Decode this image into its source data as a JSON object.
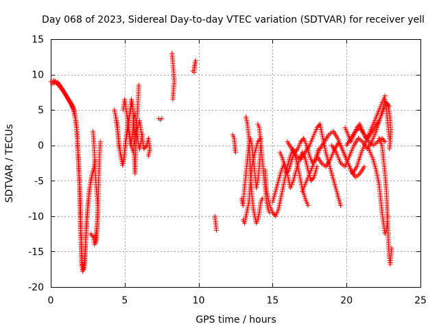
{
  "chart_data": {
    "type": "scatter",
    "title": "Day 068 of 2023, Sidereal Day-to-day VTEC variation (SDTVAR) for receiver yell",
    "xlabel": "GPS time / hours",
    "ylabel": "SDTVAR / TECUs",
    "xlim": [
      0,
      25
    ],
    "ylim": [
      -20,
      15
    ],
    "x_ticks": [
      0,
      5,
      10,
      15,
      20,
      25
    ],
    "x_tick_labels": [
      "0",
      "5",
      "10",
      "15",
      "20",
      "25"
    ],
    "y_ticks": [
      -20,
      -15,
      -10,
      -5,
      0,
      5,
      10,
      15
    ],
    "y_tick_labels": [
      "-20",
      "-15",
      "-10",
      "-5",
      "0",
      "5",
      "10",
      "15"
    ],
    "grid": true,
    "marker": "plus",
    "color": "#ff0000",
    "tracks": [
      [
        [
          0.0,
          9.0
        ],
        [
          0.4,
          8.8
        ],
        [
          0.8,
          7.8
        ],
        [
          1.2,
          6.5
        ],
        [
          1.5,
          5.5
        ],
        [
          1.7,
          3.5
        ],
        [
          1.8,
          1.0
        ],
        [
          1.9,
          -3.0
        ],
        [
          2.0,
          -8.0
        ],
        [
          2.05,
          -13.0
        ],
        [
          2.1,
          -17.0
        ],
        [
          2.2,
          -17.5
        ],
        [
          2.3,
          -16.5
        ],
        [
          2.4,
          -12.0
        ],
        [
          2.5,
          -9.0
        ],
        [
          2.6,
          -6.5
        ],
        [
          2.8,
          -4.0
        ],
        [
          3.0,
          -2.5
        ]
      ],
      [
        [
          0.2,
          9.2
        ],
        [
          0.6,
          8.5
        ],
        [
          1.0,
          7.2
        ],
        [
          1.3,
          6.0
        ],
        [
          1.6,
          5.0
        ],
        [
          1.75,
          2.5
        ],
        [
          1.85,
          -1.5
        ],
        [
          1.95,
          -6.0
        ],
        [
          2.0,
          -11.0
        ],
        [
          2.08,
          -15.5
        ],
        [
          2.15,
          -17.8
        ],
        [
          2.25,
          -17.2
        ],
        [
          2.35,
          -14.0
        ],
        [
          2.45,
          -10.0
        ],
        [
          2.55,
          -7.5
        ],
        [
          2.7,
          -5.0
        ],
        [
          2.9,
          -3.5
        ],
        [
          3.0,
          -2.2
        ]
      ],
      [
        [
          0.1,
          8.7
        ],
        [
          0.5,
          8.9
        ],
        [
          0.9,
          7.5
        ],
        [
          1.1,
          6.8
        ],
        [
          1.4,
          5.8
        ],
        [
          1.55,
          4.8
        ],
        [
          1.65,
          4.0
        ],
        [
          1.78,
          2.0
        ],
        [
          1.88,
          -2.5
        ],
        [
          1.98,
          -7.0
        ],
        [
          2.03,
          -12.0
        ],
        [
          2.12,
          -16.8
        ],
        [
          2.28,
          -17.0
        ],
        [
          2.42,
          -11.0
        ]
      ],
      [
        [
          2.7,
          -12.5
        ],
        [
          2.9,
          -13.0
        ],
        [
          2.95,
          -14.0
        ],
        [
          3.0,
          -13.5
        ],
        [
          3.1,
          -12.0
        ],
        [
          3.15,
          -11.0
        ],
        [
          3.2,
          -9.0
        ],
        [
          3.0,
          -4.0
        ],
        [
          2.95,
          -1.0
        ],
        [
          2.9,
          1.0
        ],
        [
          2.85,
          2.0
        ]
      ],
      [
        [
          3.0,
          -12.8
        ],
        [
          3.05,
          -13.8
        ],
        [
          3.1,
          -13.2
        ],
        [
          3.2,
          -8.0
        ],
        [
          3.25,
          -4.0
        ],
        [
          3.3,
          -1.5
        ],
        [
          3.35,
          0.5
        ]
      ],
      [
        [
          4.3,
          5.0
        ],
        [
          4.5,
          3.0
        ],
        [
          4.6,
          0.0
        ],
        [
          4.8,
          -2.0
        ],
        [
          4.9,
          -2.5
        ],
        [
          5.0,
          -1.0
        ],
        [
          5.1,
          1.0
        ],
        [
          5.2,
          3.0
        ],
        [
          5.4,
          5.0
        ],
        [
          5.5,
          6.0
        ],
        [
          5.6,
          4.0
        ],
        [
          5.7,
          1.5
        ],
        [
          5.8,
          3.0
        ],
        [
          5.9,
          6.0
        ],
        [
          5.95,
          8.5
        ]
      ],
      [
        [
          4.4,
          4.0
        ],
        [
          4.55,
          1.5
        ],
        [
          4.7,
          -1.0
        ],
        [
          4.85,
          -2.8
        ],
        [
          4.95,
          -2.0
        ],
        [
          5.05,
          0.5
        ],
        [
          5.2,
          2.0
        ],
        [
          5.35,
          4.5
        ],
        [
          5.45,
          6.5
        ],
        [
          5.55,
          5.5
        ],
        [
          5.6,
          2.0
        ],
        [
          5.65,
          -2.0
        ],
        [
          5.7,
          -4.0
        ],
        [
          5.75,
          0.0
        ],
        [
          5.85,
          2.0
        ]
      ],
      [
        [
          4.9,
          5.0
        ],
        [
          5.0,
          6.5
        ],
        [
          5.1,
          5.0
        ],
        [
          5.2,
          3.5
        ],
        [
          5.3,
          1.5
        ],
        [
          5.4,
          0.0
        ],
        [
          5.5,
          1.0
        ],
        [
          5.6,
          3.5
        ],
        [
          5.7,
          4.5
        ],
        [
          5.8,
          2.5
        ],
        [
          5.9,
          0.5
        ],
        [
          6.0,
          -0.5
        ],
        [
          6.1,
          0.5
        ],
        [
          6.2,
          1.5
        ]
      ],
      [
        [
          5.2,
          4.0
        ],
        [
          5.3,
          2.0
        ],
        [
          5.5,
          -0.5
        ],
        [
          5.6,
          -1.0
        ],
        [
          5.7,
          1.0
        ],
        [
          6.0,
          3.5
        ],
        [
          6.3,
          -0.5
        ],
        [
          6.5,
          0.0
        ],
        [
          6.6,
          1.0
        ],
        [
          6.7,
          -0.5
        ],
        [
          6.6,
          -1.5
        ]
      ],
      [
        [
          7.3,
          3.8
        ],
        [
          7.4,
          3.6
        ],
        [
          7.5,
          3.8
        ]
      ],
      [
        [
          8.2,
          13.0
        ],
        [
          8.25,
          11.8
        ],
        [
          8.3,
          10.5
        ],
        [
          8.35,
          9.0
        ],
        [
          8.3,
          7.8
        ],
        [
          8.25,
          6.5
        ]
      ],
      [
        [
          9.6,
          10.5
        ],
        [
          9.7,
          10.3
        ],
        [
          9.75,
          11.5
        ],
        [
          9.8,
          12.0
        ],
        [
          9.7,
          11.0
        ]
      ],
      [
        [
          11.1,
          -10.0
        ],
        [
          11.15,
          -11.0
        ],
        [
          11.2,
          -12.0
        ]
      ],
      [
        [
          12.3,
          1.5
        ],
        [
          12.4,
          1.0
        ],
        [
          12.5,
          -1.0
        ],
        [
          12.45,
          -0.5
        ]
      ],
      [
        [
          12.9,
          -7.5
        ],
        [
          13.0,
          -8.5
        ],
        [
          13.1,
          -6.0
        ],
        [
          13.2,
          -4.0
        ],
        [
          13.3,
          -2.0
        ],
        [
          13.4,
          0.0
        ],
        [
          13.5,
          1.0
        ],
        [
          13.6,
          0.0
        ],
        [
          13.7,
          -2.0
        ],
        [
          13.8,
          -4.0
        ],
        [
          13.9,
          -6.0
        ],
        [
          14.0,
          -5.0
        ],
        [
          14.1,
          -3.0
        ],
        [
          14.2,
          0.0
        ]
      ],
      [
        [
          13.2,
          4.0
        ],
        [
          13.3,
          3.0
        ],
        [
          13.4,
          1.0
        ],
        [
          13.45,
          -1.5
        ],
        [
          13.5,
          -4.0
        ],
        [
          13.6,
          -7.0
        ],
        [
          13.7,
          -9.0
        ],
        [
          13.8,
          -10.0
        ],
        [
          13.9,
          -11.0
        ],
        [
          14.0,
          -10.5
        ],
        [
          14.1,
          -9.5
        ],
        [
          14.2,
          -8.0
        ],
        [
          14.3,
          -7.5
        ]
      ],
      [
        [
          13.0,
          -10.5
        ],
        [
          13.1,
          -11.0
        ],
        [
          13.2,
          -10.0
        ],
        [
          13.3,
          -9.0
        ],
        [
          13.4,
          -8.0
        ],
        [
          13.5,
          -5.5
        ],
        [
          13.6,
          -3.0
        ],
        [
          13.8,
          -1.0
        ],
        [
          14.0,
          0.5
        ],
        [
          14.2,
          1.0
        ]
      ],
      [
        [
          14.0,
          3.0
        ],
        [
          14.1,
          2.5
        ],
        [
          14.2,
          0.5
        ],
        [
          14.3,
          -2.0
        ],
        [
          14.4,
          -4.0
        ],
        [
          14.5,
          -6.0
        ],
        [
          14.6,
          -8.0
        ],
        [
          14.7,
          -9.0
        ],
        [
          14.8,
          -9.5
        ]
      ],
      [
        [
          14.5,
          -3.5
        ],
        [
          14.6,
          -6.5
        ],
        [
          14.8,
          -8.5
        ],
        [
          15.0,
          -9.5
        ],
        [
          15.2,
          -10.0
        ],
        [
          15.4,
          -9.0
        ],
        [
          15.6,
          -7.0
        ],
        [
          15.8,
          -5.0
        ],
        [
          16.0,
          -3.0
        ],
        [
          16.2,
          -1.5
        ],
        [
          16.4,
          -0.5
        ],
        [
          16.6,
          -2.0
        ],
        [
          16.8,
          -4.0
        ],
        [
          17.0,
          -6.0
        ],
        [
          17.2,
          -7.5
        ],
        [
          17.4,
          -8.5
        ]
      ],
      [
        [
          15.0,
          -8.0
        ],
        [
          15.2,
          -6.5
        ],
        [
          15.4,
          -5.0
        ],
        [
          15.6,
          -3.5
        ],
        [
          15.8,
          -2.5
        ],
        [
          16.0,
          -4.0
        ],
        [
          16.2,
          -6.0
        ],
        [
          16.4,
          -5.0
        ],
        [
          16.6,
          -3.5
        ],
        [
          16.8,
          -2.0
        ],
        [
          17.0,
          -1.0
        ],
        [
          17.2,
          -1.8
        ],
        [
          17.4,
          -3.5
        ],
        [
          17.6,
          -5.0
        ],
        [
          17.8,
          -4.5
        ],
        [
          18.0,
          -3.0
        ]
      ],
      [
        [
          15.5,
          -1.0
        ],
        [
          15.7,
          -2.0
        ],
        [
          15.9,
          -4.0
        ],
        [
          16.1,
          -3.5
        ],
        [
          16.3,
          -2.0
        ],
        [
          16.5,
          -1.0
        ],
        [
          16.7,
          -0.5
        ],
        [
          16.9,
          0.5
        ],
        [
          17.1,
          1.0
        ],
        [
          17.3,
          0.0
        ],
        [
          17.5,
          -1.5
        ],
        [
          17.7,
          -2.5
        ],
        [
          17.9,
          -2.0
        ],
        [
          18.1,
          -0.5
        ]
      ],
      [
        [
          16.0,
          0.5
        ],
        [
          16.3,
          -0.5
        ],
        [
          16.6,
          -1.5
        ],
        [
          16.9,
          -2.0
        ],
        [
          17.2,
          -1.0
        ],
        [
          17.5,
          0.0
        ],
        [
          17.8,
          1.5
        ],
        [
          18.0,
          2.5
        ],
        [
          18.2,
          3.0
        ],
        [
          18.4,
          1.0
        ],
        [
          18.6,
          -1.0
        ],
        [
          18.8,
          -2.5
        ],
        [
          19.0,
          -4.0
        ],
        [
          19.2,
          -5.5
        ],
        [
          19.4,
          -7.0
        ],
        [
          19.6,
          -8.5
        ]
      ],
      [
        [
          17.0,
          -6.5
        ],
        [
          17.3,
          -5.0
        ],
        [
          17.6,
          -3.5
        ],
        [
          17.9,
          -2.0
        ],
        [
          18.2,
          -0.5
        ],
        [
          18.5,
          0.5
        ],
        [
          18.8,
          1.5
        ],
        [
          19.1,
          2.0
        ],
        [
          19.4,
          1.0
        ],
        [
          19.7,
          -0.5
        ],
        [
          20.0,
          -2.0
        ],
        [
          20.3,
          -3.5
        ],
        [
          20.6,
          -4.5
        ],
        [
          20.9,
          -4.0
        ],
        [
          21.2,
          -3.0
        ]
      ],
      [
        [
          18.0,
          -1.5
        ],
        [
          18.3,
          -2.5
        ],
        [
          18.6,
          -3.0
        ],
        [
          18.9,
          -2.0
        ],
        [
          19.2,
          -0.5
        ],
        [
          19.5,
          0.5
        ],
        [
          19.8,
          -1.0
        ],
        [
          20.1,
          -2.5
        ],
        [
          20.4,
          -4.0
        ],
        [
          20.7,
          -3.0
        ],
        [
          21.0,
          -1.0
        ],
        [
          21.3,
          0.5
        ],
        [
          21.6,
          1.5
        ],
        [
          21.9,
          2.5
        ],
        [
          22.2,
          3.5
        ],
        [
          22.5,
          5.0
        ],
        [
          22.7,
          6.0
        ],
        [
          22.9,
          5.5
        ]
      ],
      [
        [
          19.0,
          0.0
        ],
        [
          19.3,
          -1.0
        ],
        [
          19.6,
          -2.5
        ],
        [
          19.9,
          -3.0
        ],
        [
          20.2,
          -1.5
        ],
        [
          20.5,
          0.0
        ],
        [
          20.8,
          1.0
        ],
        [
          21.1,
          0.5
        ],
        [
          21.4,
          -0.5
        ],
        [
          21.7,
          0.5
        ],
        [
          22.0,
          2.0
        ],
        [
          22.3,
          4.0
        ],
        [
          22.5,
          5.5
        ],
        [
          22.6,
          6.5
        ],
        [
          22.7,
          5.0
        ],
        [
          22.8,
          3.0
        ],
        [
          22.9,
          1.0
        ]
      ],
      [
        [
          19.9,
          2.5
        ],
        [
          20.1,
          1.5
        ],
        [
          20.3,
          0.5
        ],
        [
          20.5,
          1.5
        ],
        [
          20.7,
          2.5
        ],
        [
          20.9,
          3.0
        ],
        [
          21.1,
          2.0
        ],
        [
          21.3,
          1.0
        ],
        [
          21.5,
          1.5
        ],
        [
          21.7,
          2.5
        ],
        [
          21.9,
          3.5
        ],
        [
          22.1,
          4.5
        ],
        [
          22.3,
          5.5
        ],
        [
          22.5,
          6.5
        ],
        [
          22.6,
          7.0
        ]
      ],
      [
        [
          20.0,
          0.0
        ],
        [
          20.3,
          1.0
        ],
        [
          20.6,
          2.0
        ],
        [
          20.9,
          2.5
        ],
        [
          21.2,
          1.5
        ],
        [
          21.5,
          0.5
        ],
        [
          21.8,
          0.0
        ],
        [
          22.1,
          0.5
        ],
        [
          22.4,
          1.0
        ],
        [
          22.6,
          0.5
        ]
      ],
      [
        [
          21.5,
          -0.5
        ],
        [
          21.8,
          -2.0
        ],
        [
          22.0,
          -3.5
        ],
        [
          22.2,
          -5.5
        ],
        [
          22.3,
          -7.5
        ],
        [
          22.4,
          -9.5
        ],
        [
          22.5,
          -11.0
        ],
        [
          22.6,
          -12.5
        ],
        [
          22.7,
          -12.0
        ],
        [
          22.8,
          -10.0
        ]
      ],
      [
        [
          22.2,
          1.0
        ],
        [
          22.4,
          0.0
        ],
        [
          22.5,
          -2.0
        ],
        [
          22.6,
          -4.0
        ],
        [
          22.7,
          -6.5
        ],
        [
          22.75,
          -9.0
        ],
        [
          22.8,
          -12.0
        ],
        [
          22.85,
          -14.5
        ],
        [
          22.9,
          -16.0
        ],
        [
          22.95,
          -16.8
        ],
        [
          23.0,
          -15.5
        ],
        [
          23.05,
          -14.5
        ]
      ],
      [
        [
          22.7,
          6.0
        ],
        [
          22.8,
          5.5
        ],
        [
          22.9,
          4.5
        ],
        [
          22.95,
          3.5
        ],
        [
          23.0,
          2.0
        ],
        [
          22.95,
          0.5
        ],
        [
          22.9,
          -0.5
        ]
      ]
    ]
  }
}
